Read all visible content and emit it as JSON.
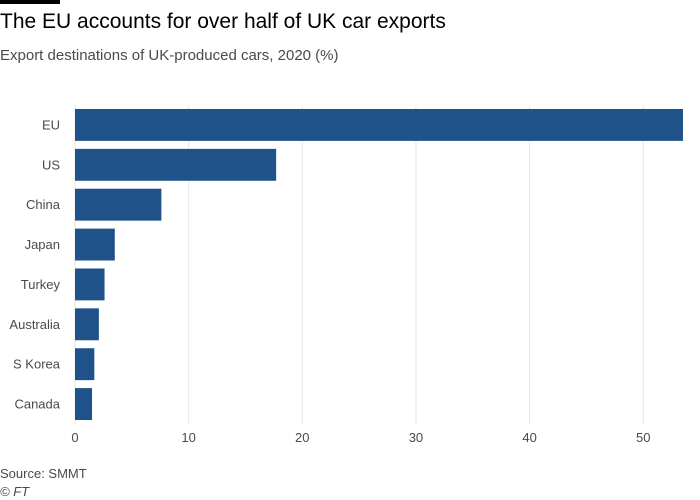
{
  "header": {
    "title": "The EU accounts for over half of UK car exports",
    "subtitle": "Export destinations of UK-produced cars, 2020 (%)"
  },
  "footer": {
    "source": "Source: SMMT",
    "copyright": "© FT"
  },
  "chart_data": {
    "type": "bar",
    "orientation": "horizontal",
    "title": "The EU accounts for over half of UK car exports",
    "subtitle": "Export destinations of UK-produced cars, 2020 (%)",
    "xlabel": "",
    "ylabel": "",
    "categories": [
      "EU",
      "US",
      "China",
      "Japan",
      "Turkey",
      "Australia",
      "S Korea",
      "Canada"
    ],
    "values": [
      53.5,
      17.7,
      7.6,
      3.5,
      2.6,
      2.1,
      1.7,
      1.5
    ],
    "xlim": [
      0,
      53.5
    ],
    "xticks": [
      0,
      10,
      20,
      30,
      40,
      50
    ],
    "grid": true,
    "bar_color": "#1e5289",
    "grid_color": "#e6e6e6"
  }
}
